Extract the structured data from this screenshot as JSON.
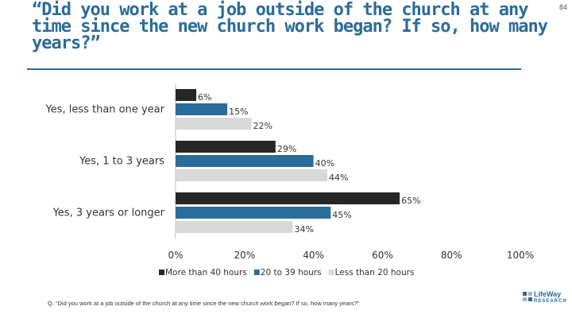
{
  "page_number": "84",
  "title": "“Did you work at a job outside of the church at any time since the new church work began? If so, how many years?”",
  "footnote": "Q. “Did you work at a job outside of the church at any time since the new church work began? If so, how many years?”",
  "logo": {
    "name": "LifeWay",
    "sub": "RESEARCH",
    "icon": "lifeway-logo-icon"
  },
  "colors": {
    "series1": "#262626",
    "series2": "#2a6c9a",
    "series3": "#d9d9d9",
    "title": "#2a6c9a",
    "text": "#333333"
  },
  "chart_data": {
    "type": "bar",
    "orientation": "horizontal",
    "categories": [
      "Yes, less than one year",
      "Yes, 1 to 3 years",
      "Yes, 3 years or longer"
    ],
    "series": [
      {
        "name": "More than 40 hours",
        "values": [
          6,
          29,
          65
        ]
      },
      {
        "name": "20 to 39 hours",
        "values": [
          15,
          40,
          45
        ]
      },
      {
        "name": "Less than 20 hours",
        "values": [
          22,
          44,
          34
        ]
      }
    ],
    "value_suffix": "%",
    "xlim": [
      0,
      100
    ],
    "xticks": [
      0,
      20,
      40,
      60,
      80,
      100
    ],
    "xtick_labels": [
      "0%",
      "20%",
      "40%",
      "60%",
      "80%",
      "100%"
    ],
    "grid": false,
    "legend_position": "bottom"
  }
}
